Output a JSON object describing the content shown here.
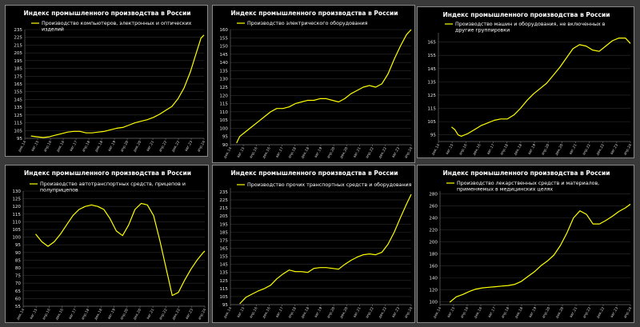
{
  "colors": {
    "series": "#ffff00",
    "background": "#000000",
    "text": "#ffffff"
  },
  "chart_data": [
    {
      "type": "line",
      "title": "Индекс промышленного производства в России",
      "series_name": "Производство компьютеров, электронных и оптических изделий",
      "yticks": [
        95,
        105,
        115,
        125,
        135,
        145,
        155,
        165,
        175,
        185,
        195,
        205,
        215,
        225,
        235
      ],
      "ylim": [
        95,
        235
      ],
      "xticks": [
        "дек.14",
        "авг.15",
        "апр.16",
        "дек.16",
        "авг.17",
        "апр.18",
        "дек.18",
        "авг.19",
        "апр.20",
        "дек.20",
        "авг.21",
        "апр.22",
        "дек.22",
        "авг.23",
        "апр.24"
      ],
      "xlim": [
        0,
        117
      ],
      "data": [
        [
          4,
          98
        ],
        [
          8,
          97
        ],
        [
          12,
          96
        ],
        [
          16,
          97
        ],
        [
          20,
          99
        ],
        [
          24,
          101
        ],
        [
          28,
          103
        ],
        [
          32,
          104
        ],
        [
          36,
          104
        ],
        [
          40,
          102
        ],
        [
          44,
          102
        ],
        [
          48,
          103
        ],
        [
          52,
          104
        ],
        [
          56,
          106
        ],
        [
          60,
          108
        ],
        [
          64,
          109
        ],
        [
          68,
          112
        ],
        [
          72,
          115
        ],
        [
          76,
          117
        ],
        [
          80,
          119
        ],
        [
          84,
          122
        ],
        [
          88,
          126
        ],
        [
          92,
          131
        ],
        [
          96,
          136
        ],
        [
          100,
          146
        ],
        [
          104,
          160
        ],
        [
          108,
          180
        ],
        [
          112,
          205
        ],
        [
          115,
          224
        ],
        [
          117,
          228
        ]
      ],
      "grid": true
    },
    {
      "type": "line",
      "title": "Индекс промышленного производства в России",
      "series_name": "Производство электрического оборудования",
      "yticks": [
        90,
        95,
        100,
        105,
        110,
        115,
        120,
        125,
        130,
        135,
        140,
        145,
        150,
        155,
        160
      ],
      "ylim": [
        90,
        160
      ],
      "xticks": [
        "дек.14",
        "авг.15",
        "апр.16",
        "дек.16",
        "авг.17",
        "апр.18",
        "дек.18",
        "авг.19",
        "апр.20",
        "дек.20",
        "авг.21",
        "апр.22",
        "дек.22",
        "авг.23",
        "апр.24"
      ],
      "xlim": [
        0,
        117
      ],
      "data": [
        [
          4,
          91
        ],
        [
          6,
          95
        ],
        [
          10,
          98
        ],
        [
          14,
          101
        ],
        [
          18,
          104
        ],
        [
          22,
          107
        ],
        [
          26,
          110
        ],
        [
          30,
          112
        ],
        [
          34,
          112
        ],
        [
          38,
          113
        ],
        [
          42,
          115
        ],
        [
          46,
          116
        ],
        [
          50,
          117
        ],
        [
          54,
          117
        ],
        [
          58,
          118
        ],
        [
          62,
          118
        ],
        [
          66,
          117
        ],
        [
          70,
          116
        ],
        [
          74,
          118
        ],
        [
          78,
          121
        ],
        [
          82,
          123
        ],
        [
          86,
          125
        ],
        [
          90,
          126
        ],
        [
          94,
          125
        ],
        [
          98,
          127
        ],
        [
          102,
          133
        ],
        [
          106,
          142
        ],
        [
          110,
          150
        ],
        [
          114,
          157
        ],
        [
          117,
          160
        ]
      ],
      "grid": true
    },
    {
      "type": "line",
      "title": "Индекс промышленного производства в России",
      "series_name": "Производство машин и оборудования, не включенных в другие группировки",
      "yticks": [
        95,
        105,
        115,
        125,
        135,
        145,
        155,
        165
      ],
      "ylim": [
        90,
        172
      ],
      "xticks": [
        "дек.14",
        "авг.15",
        "апр.16",
        "дек.16",
        "авг.17",
        "апр.18",
        "дек.18",
        "авг.19",
        "апр.20",
        "дек.20",
        "авг.21",
        "апр.22",
        "дек.22",
        "авг.23",
        "апр.24"
      ],
      "xlim": [
        0,
        117
      ],
      "data": [
        [
          8,
          101
        ],
        [
          10,
          99
        ],
        [
          12,
          95
        ],
        [
          14,
          94
        ],
        [
          18,
          96
        ],
        [
          22,
          99
        ],
        [
          26,
          102
        ],
        [
          30,
          104
        ],
        [
          34,
          106
        ],
        [
          38,
          107
        ],
        [
          42,
          107
        ],
        [
          46,
          110
        ],
        [
          50,
          115
        ],
        [
          54,
          121
        ],
        [
          58,
          126
        ],
        [
          62,
          130
        ],
        [
          66,
          134
        ],
        [
          70,
          140
        ],
        [
          74,
          146
        ],
        [
          78,
          153
        ],
        [
          82,
          160
        ],
        [
          86,
          163
        ],
        [
          90,
          162
        ],
        [
          94,
          159
        ],
        [
          98,
          158
        ],
        [
          102,
          162
        ],
        [
          106,
          166
        ],
        [
          110,
          168
        ],
        [
          114,
          168
        ],
        [
          117,
          164
        ]
      ],
      "grid": true
    },
    {
      "type": "line",
      "title": "Индекс промышленного производства в России",
      "series_name": "Производство автотранспортных средств, прицепов и полуприцепов",
      "yticks": [
        55,
        60,
        65,
        70,
        75,
        80,
        85,
        90,
        95,
        100,
        105,
        110,
        115,
        120,
        125,
        130
      ],
      "ylim": [
        55,
        130
      ],
      "xticks": [
        "дек.14",
        "авг.15",
        "апр.16",
        "дек.16",
        "авг.17",
        "апр.18",
        "дек.18",
        "авг.19",
        "апр.20",
        "дек.20",
        "авг.21",
        "апр.22",
        "дек.22",
        "авг.23",
        "апр.24"
      ],
      "xlim": [
        0,
        117
      ],
      "data": [
        [
          8,
          102
        ],
        [
          12,
          97
        ],
        [
          16,
          94
        ],
        [
          20,
          97
        ],
        [
          24,
          102
        ],
        [
          28,
          108
        ],
        [
          32,
          114
        ],
        [
          36,
          118
        ],
        [
          40,
          120
        ],
        [
          44,
          121
        ],
        [
          48,
          120
        ],
        [
          52,
          118
        ],
        [
          56,
          112
        ],
        [
          60,
          104
        ],
        [
          64,
          101
        ],
        [
          68,
          108
        ],
        [
          72,
          118
        ],
        [
          76,
          122
        ],
        [
          80,
          121
        ],
        [
          84,
          114
        ],
        [
          88,
          98
        ],
        [
          92,
          80
        ],
        [
          96,
          62
        ],
        [
          100,
          64
        ],
        [
          104,
          72
        ],
        [
          108,
          79
        ],
        [
          112,
          85
        ],
        [
          116,
          90
        ],
        [
          117,
          91
        ]
      ],
      "grid": true
    },
    {
      "type": "line",
      "title": "Индекс промышленного производства в России",
      "series_name": "Производство прочих транспортных средств и оборудования",
      "yticks": [
        95,
        105,
        115,
        125,
        135,
        145,
        155,
        165,
        175,
        185,
        195,
        205,
        215,
        225,
        235
      ],
      "ylim": [
        95,
        240
      ],
      "xticks": [
        "дек.14",
        "авг.15",
        "апр.16",
        "дек.16",
        "авг.17",
        "апр.18",
        "дек.18",
        "авг.19",
        "апр.20",
        "дек.20",
        "авг.21",
        "апр.22",
        "дек.22",
        "авг.23",
        "апр.24"
      ],
      "xlim": [
        0,
        117
      ],
      "data": [
        [
          6,
          96
        ],
        [
          10,
          104
        ],
        [
          14,
          108
        ],
        [
          18,
          112
        ],
        [
          22,
          115
        ],
        [
          26,
          119
        ],
        [
          30,
          127
        ],
        [
          34,
          133
        ],
        [
          38,
          138
        ],
        [
          42,
          136
        ],
        [
          46,
          136
        ],
        [
          50,
          135
        ],
        [
          54,
          140
        ],
        [
          58,
          141
        ],
        [
          62,
          141
        ],
        [
          66,
          140
        ],
        [
          70,
          139
        ],
        [
          74,
          145
        ],
        [
          78,
          150
        ],
        [
          82,
          154
        ],
        [
          86,
          157
        ],
        [
          90,
          158
        ],
        [
          94,
          157
        ],
        [
          98,
          160
        ],
        [
          102,
          170
        ],
        [
          106,
          185
        ],
        [
          110,
          203
        ],
        [
          114,
          220
        ],
        [
          117,
          232
        ]
      ],
      "grid": true
    },
    {
      "type": "line",
      "title": "Индекс промышленного производства в России",
      "series_name": "Производство лекарственных средств и материалов, применяемых в медицинских целях",
      "yticks": [
        100,
        120,
        140,
        160,
        180,
        200,
        220,
        240,
        260,
        280
      ],
      "ylim": [
        95,
        285
      ],
      "xticks": [
        "дек.14",
        "авг.15",
        "апр.16",
        "дек.16",
        "авг.17",
        "апр.18",
        "дек.18",
        "авг.19",
        "апр.20",
        "дек.20",
        "авг.21",
        "апр.22",
        "дек.22",
        "авг.23",
        "апр.24"
      ],
      "xlim": [
        0,
        117
      ],
      "data": [
        [
          6,
          99
        ],
        [
          10,
          108
        ],
        [
          14,
          112
        ],
        [
          18,
          117
        ],
        [
          22,
          121
        ],
        [
          26,
          123
        ],
        [
          30,
          124
        ],
        [
          34,
          125
        ],
        [
          38,
          126
        ],
        [
          42,
          127
        ],
        [
          46,
          129
        ],
        [
          50,
          134
        ],
        [
          54,
          142
        ],
        [
          58,
          150
        ],
        [
          62,
          160
        ],
        [
          66,
          168
        ],
        [
          70,
          178
        ],
        [
          74,
          194
        ],
        [
          78,
          215
        ],
        [
          82,
          240
        ],
        [
          86,
          252
        ],
        [
          90,
          246
        ],
        [
          94,
          230
        ],
        [
          98,
          230
        ],
        [
          102,
          236
        ],
        [
          106,
          243
        ],
        [
          110,
          251
        ],
        [
          114,
          257
        ],
        [
          117,
          263
        ]
      ],
      "grid": true
    }
  ]
}
